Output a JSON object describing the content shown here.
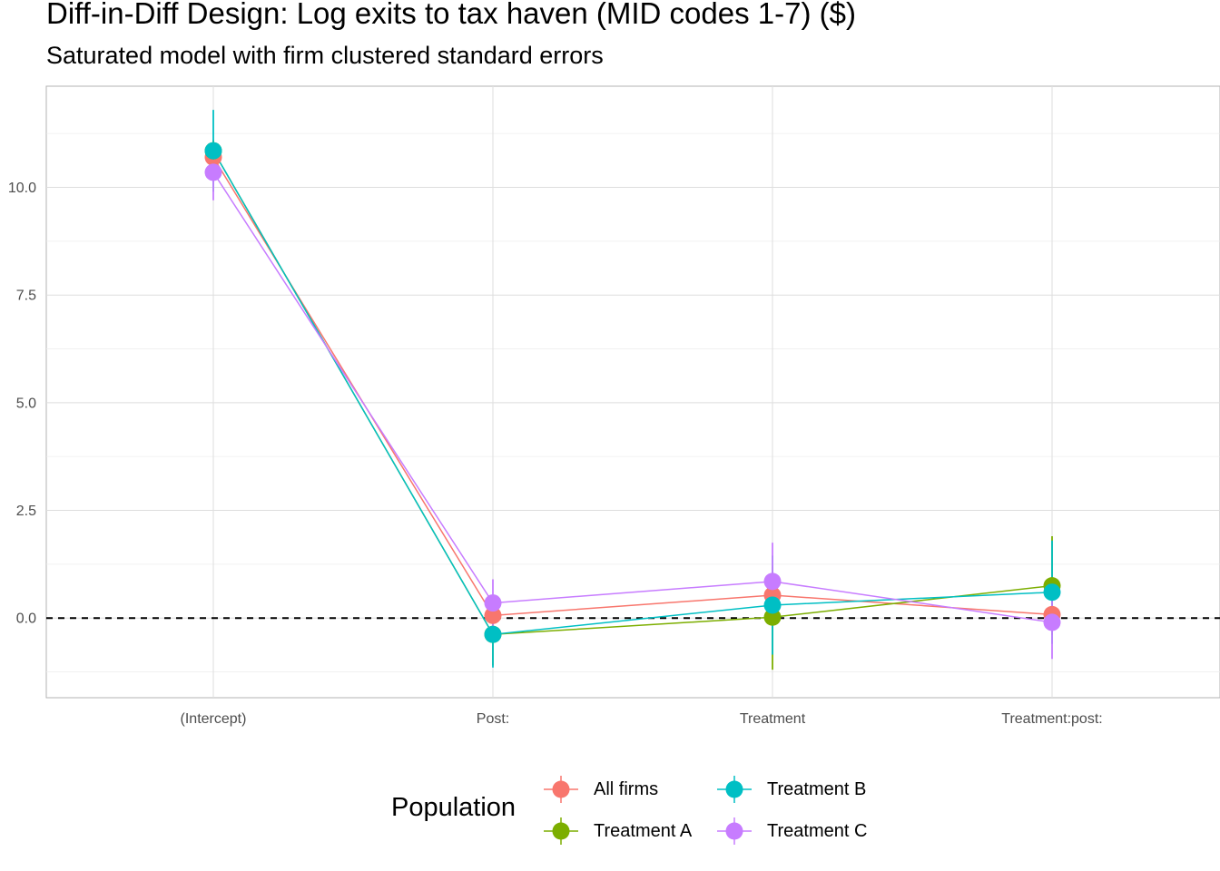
{
  "title": "Diff-in-Diff Design: Log exits to tax haven (MID codes 1-7)  ($)",
  "subtitle": "Saturated model with firm clustered standard errors",
  "legend": {
    "title": "Population",
    "items": [
      {
        "label": "All firms",
        "color": "#F8766D"
      },
      {
        "label": "Treatment A",
        "color": "#7CAE00"
      },
      {
        "label": "Treatment B",
        "color": "#00BFC4"
      },
      {
        "label": "Treatment C",
        "color": "#C77CFF"
      }
    ]
  },
  "chart_data": {
    "type": "line",
    "title": "Diff-in-Diff Design: Log exits to tax haven (MID codes 1-7)  ($)",
    "subtitle": "Saturated model with firm clustered standard errors",
    "xlabel": "",
    "ylabel": "",
    "categories": [
      "(Intercept)",
      "Post:",
      "Treatment",
      "Treatment:post:"
    ],
    "ylim": [
      -1.85,
      12.35
    ],
    "yticks": [
      0.0,
      2.5,
      5.0,
      7.5,
      10.0
    ],
    "ytick_labels": [
      "0.0",
      "2.5",
      "5.0",
      "7.5",
      "10.0"
    ],
    "reference_line": 0,
    "grid": true,
    "legend_position": "bottom",
    "series": [
      {
        "name": "All firms",
        "color": "#F8766D",
        "values": [
          10.7,
          0.06,
          0.53,
          0.08
        ],
        "lower": [
          10.5,
          -0.1,
          0.2,
          -0.2
        ],
        "upper": [
          10.9,
          0.25,
          0.85,
          0.35
        ]
      },
      {
        "name": "Treatment A",
        "color": "#7CAE00",
        "values": [
          10.85,
          -0.38,
          0.02,
          0.75
        ],
        "lower": [
          10.6,
          -1.1,
          -1.2,
          -0.4
        ],
        "upper": [
          11.1,
          0.3,
          1.2,
          1.9
        ]
      },
      {
        "name": "Treatment B",
        "color": "#00BFC4",
        "values": [
          10.85,
          -0.38,
          0.3,
          0.6
        ],
        "lower": [
          9.9,
          -1.15,
          -0.85,
          -0.6
        ],
        "upper": [
          11.8,
          0.35,
          1.45,
          1.8
        ]
      },
      {
        "name": "Treatment C",
        "color": "#C77CFF",
        "values": [
          10.35,
          0.35,
          0.85,
          -0.1
        ],
        "lower": [
          9.7,
          -0.2,
          -0.05,
          -0.95
        ],
        "upper": [
          11.0,
          0.9,
          1.75,
          0.75
        ]
      }
    ]
  }
}
